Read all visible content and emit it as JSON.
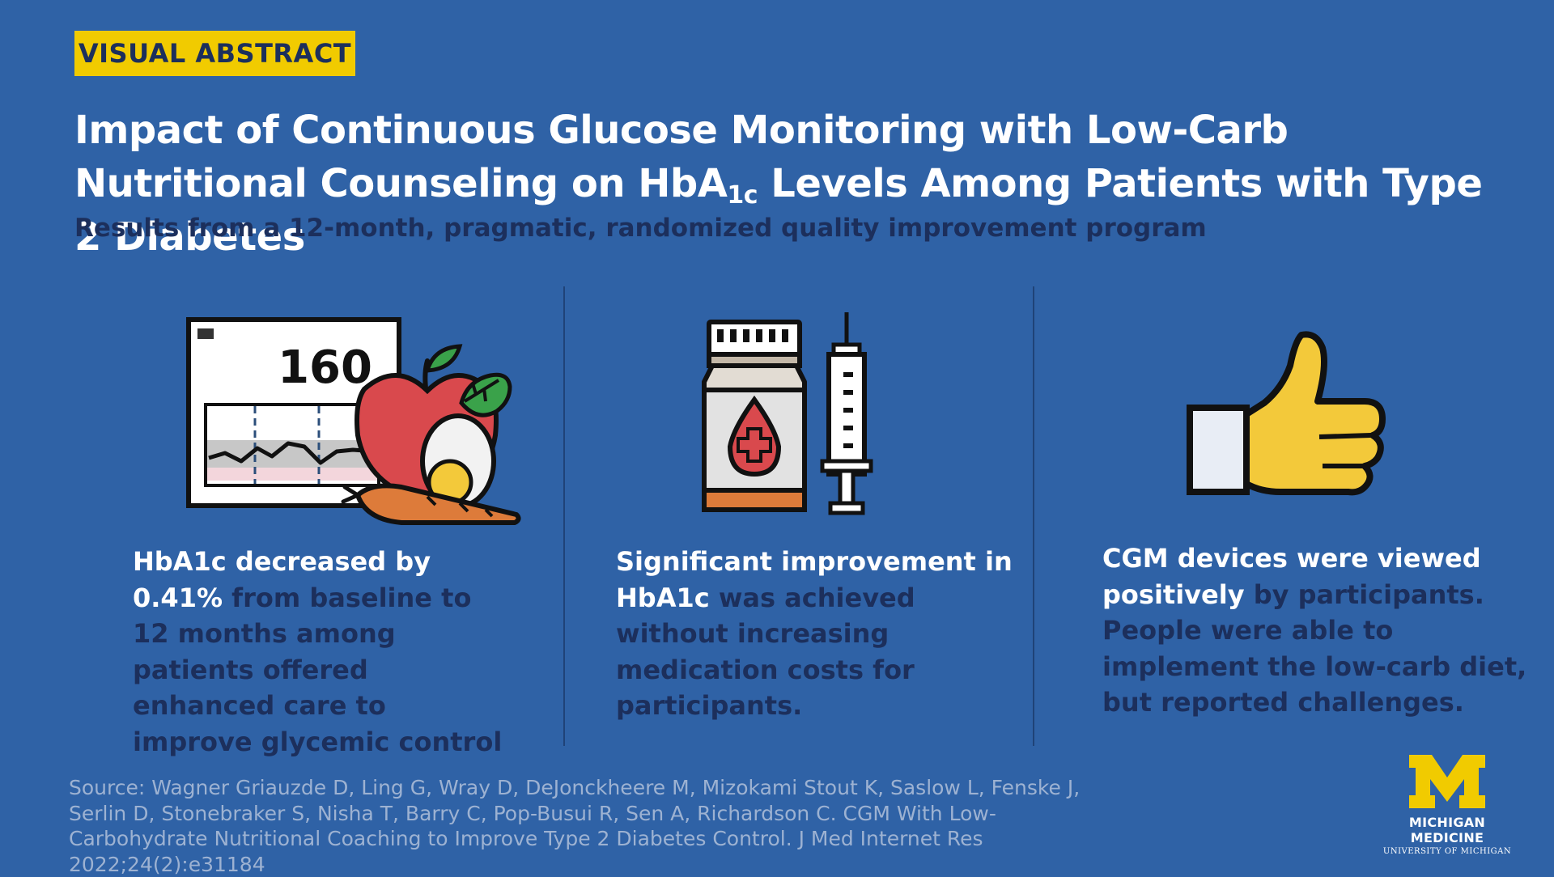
{
  "tag": "VISUAL ABSTRACT",
  "title": {
    "part1": "Impact of Continuous Glucose Monitoring with Low-Carb Nutritional Counseling on HbA",
    "sub": "1c",
    "part2": " Levels Among Patients with Type 2 Diabetes"
  },
  "subtitle": "Results from a 12-month, pragmatic, randomized quality improvement program",
  "columns": [
    {
      "monitor_value": "160",
      "text_highlight": "HbA1c decreased by 0.41%",
      "text_rest": " from baseline to 12 months among patients offered enhanced care to improve glycemic control"
    },
    {
      "text_highlight_1": "Significant improvement in HbA1c",
      "text_rest_1": " was achieved without increasing medication costs for participants."
    },
    {
      "text_highlight_1": "CGM devices were viewed positively",
      "text_rest_1": " by participants. People were able to implement the low-carb diet, but reported challenges."
    }
  ],
  "source": "Source: Wagner Griauzde D, Ling G, Wray D, DeJonckheere M, Mizokami Stout K, Saslow L, Fenske J, Serlin D, Stonebraker S, Nisha T, Barry C, Pop-Busui R, Sen A, Richardson C. CGM With Low-Carbohydrate Nutritional Coaching to Improve Type 2 Diabetes Control. J Med Internet Res 2022;24(2):e31184",
  "logo": {
    "letter": "M",
    "name": "MICHIGAN MEDICINE",
    "university": "UNIVERSITY OF MICHIGAN"
  },
  "colors": {
    "background": "#2f62a6",
    "tag": "#f1cb00",
    "dark_text": "#1c2f5c",
    "accent_white": "#ffffff",
    "maize": "#f1cb00"
  }
}
